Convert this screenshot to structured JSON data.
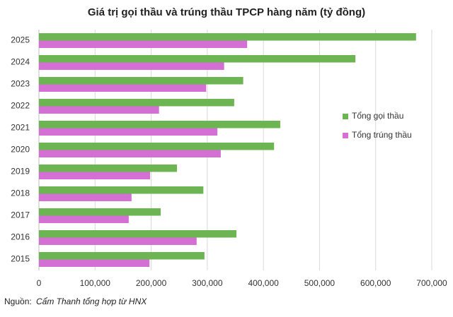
{
  "chart_data": {
    "type": "hbar",
    "title": "Giá trị gọi thầu và trúng thầu TPCP hàng năm (tỷ đồng)",
    "categories": [
      "2025",
      "2024",
      "2023",
      "2022",
      "2021",
      "2020",
      "2019",
      "2018",
      "2017",
      "2016",
      "2015"
    ],
    "series": [
      {
        "name": "Tổng gọi thầu",
        "color": "#6db553",
        "values": [
          672000,
          564000,
          364000,
          348000,
          430000,
          419000,
          246000,
          293000,
          217000,
          352000,
          295000
        ]
      },
      {
        "name": "Tổng trúng thầu",
        "color": "#d46fd4",
        "values": [
          371000,
          330000,
          298000,
          214000,
          318000,
          324000,
          198000,
          165000,
          160000,
          281000,
          197000
        ]
      }
    ],
    "xlim": [
      0,
      700000
    ],
    "xticks": [
      0,
      {
        "value": 100000,
        "label": "100,000"
      },
      {
        "value": 200000,
        "label": "200,000"
      },
      {
        "value": 300000,
        "label": "300,000"
      },
      {
        "value": 400000,
        "label": "400,000"
      },
      {
        "value": 500000,
        "label": "500,000"
      },
      {
        "value": 600000,
        "label": "600,000"
      },
      {
        "value": 700000,
        "label": "700,000"
      }
    ],
    "grid": true,
    "legend": "right",
    "source_label": "Nguồn:",
    "source": "Cẩm Thanh tổng hợp từ HNX"
  }
}
